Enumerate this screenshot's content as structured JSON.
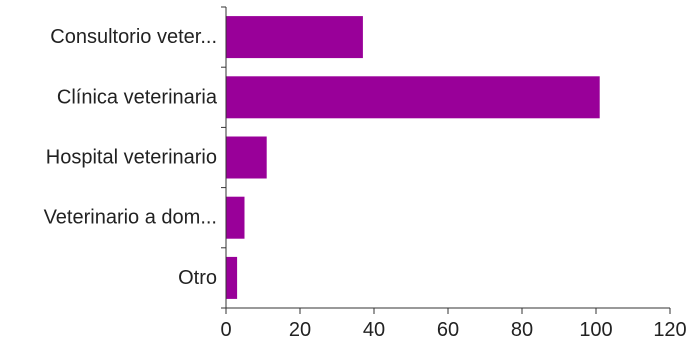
{
  "chart_data": {
    "type": "bar",
    "orientation": "horizontal",
    "categories": [
      "Consultorio veter...",
      "Clínica veterinaria",
      "Hospital veterinario",
      "Veterinario a dom...",
      "Otro"
    ],
    "values": [
      37,
      101,
      11,
      5,
      3
    ],
    "x_ticks": [
      "0",
      "20",
      "40",
      "60",
      "80",
      "100",
      "120"
    ],
    "xlim": [
      0,
      120
    ],
    "grid": false,
    "legend": "none",
    "colors": {
      "bar": "#990099",
      "axis": "#333333"
    }
  }
}
